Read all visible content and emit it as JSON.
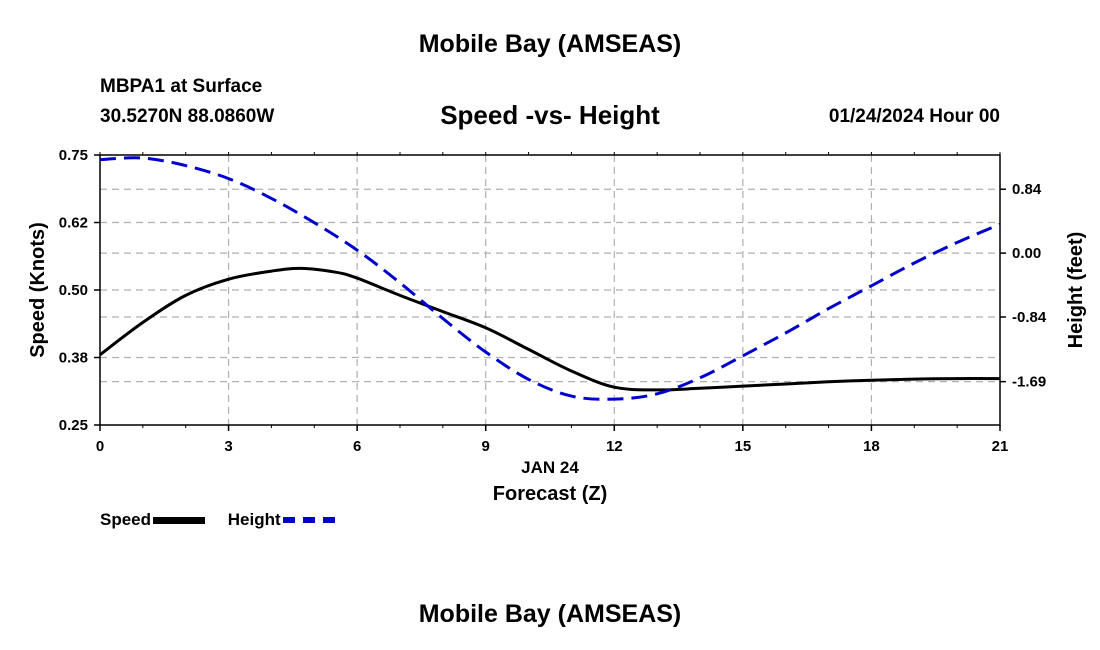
{
  "page": {
    "title_top": "Mobile Bay (AMSEAS)",
    "title_bottom": "Mobile Bay (AMSEAS)",
    "station": "MBPA1 at Surface",
    "coords": "30.5270N  88.0860W",
    "date": "01/24/2024 Hour 00"
  },
  "colors": {
    "speed": "#000000",
    "height": "#0000cc",
    "grid": "#b0b0b0"
  },
  "chart_data": {
    "type": "line",
    "title": "Speed -vs- Height",
    "xlabel": "Forecast (Z)",
    "xlabel_date": "JAN 24",
    "ylabel": "Speed (Knots)",
    "y2label": "Height (feet)",
    "x_ticks": [
      0,
      3,
      6,
      9,
      12,
      15,
      18,
      21
    ],
    "xlim": [
      0,
      21
    ],
    "ylim": [
      0.25,
      0.75
    ],
    "y_ticks": [
      0.25,
      0.375,
      0.5,
      0.625,
      0.75
    ],
    "y_tick_labels": [
      "0.25",
      "0.38",
      "0.50",
      "0.62",
      "0.75"
    ],
    "y2lim": [
      -2.26,
      1.29
    ],
    "y2_ticks": [
      0.84,
      0.0,
      -0.84,
      -1.69
    ],
    "y2_tick_labels": [
      "0.84",
      "0.00",
      "-0.84",
      "-1.69"
    ],
    "grid": true,
    "series": [
      {
        "name": "Speed",
        "axis": "left",
        "style": "solid",
        "x": [
          0,
          1,
          2,
          3,
          4,
          4.7,
          5.5,
          6,
          7,
          8,
          9,
          10,
          11,
          12,
          13,
          14,
          15,
          16,
          17,
          18,
          19,
          20,
          21
        ],
        "values": [
          0.38,
          0.44,
          0.49,
          0.52,
          0.535,
          0.54,
          0.533,
          0.522,
          0.49,
          0.46,
          0.43,
          0.39,
          0.35,
          0.32,
          0.315,
          0.318,
          0.322,
          0.326,
          0.33,
          0.333,
          0.335,
          0.336,
          0.336
        ]
      },
      {
        "name": "Height",
        "axis": "right",
        "style": "dashed",
        "x": [
          0,
          1,
          2,
          3,
          4,
          5,
          6,
          7,
          8,
          9,
          10,
          11,
          12,
          13,
          14,
          15,
          16,
          17,
          18,
          19,
          20,
          21
        ],
        "values": [
          1.23,
          1.25,
          1.15,
          0.98,
          0.72,
          0.4,
          0.04,
          -0.39,
          -0.86,
          -1.3,
          -1.66,
          -1.88,
          -1.92,
          -1.85,
          -1.64,
          -1.35,
          -1.05,
          -0.73,
          -0.43,
          -0.13,
          0.14,
          0.38
        ]
      }
    ],
    "legend": {
      "placement": "bottom-left",
      "labels": [
        "Speed",
        "Height"
      ]
    }
  }
}
